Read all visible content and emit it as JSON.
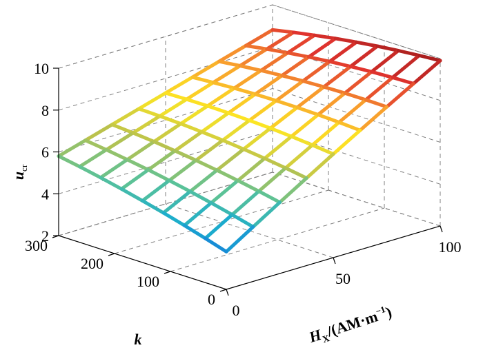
{
  "chart_data": {
    "type": "surface",
    "title": "",
    "xlabel": {
      "main": "H",
      "sub": "X",
      "unit": "/(AM·m",
      "sup": "−1",
      "close": ")"
    },
    "ylabel": "k",
    "zlabel": {
      "main": "u",
      "sub": "cr"
    },
    "xlim": [
      0,
      100
    ],
    "ylim": [
      0,
      300
    ],
    "zlim": [
      2,
      10
    ],
    "x_ticks": [
      "0",
      "50",
      "100"
    ],
    "y_ticks": [
      "0",
      "100",
      "200",
      "300"
    ],
    "z_ticks": [
      "2",
      "4",
      "6",
      "8",
      "10"
    ],
    "x": [
      0,
      12.5,
      25,
      37.5,
      50,
      62.5,
      75,
      87.5,
      100
    ],
    "y": [
      0,
      37.5,
      75,
      112.5,
      150,
      187.5,
      225,
      262.5,
      300
    ],
    "grid": true,
    "colormap": "parula"
  }
}
